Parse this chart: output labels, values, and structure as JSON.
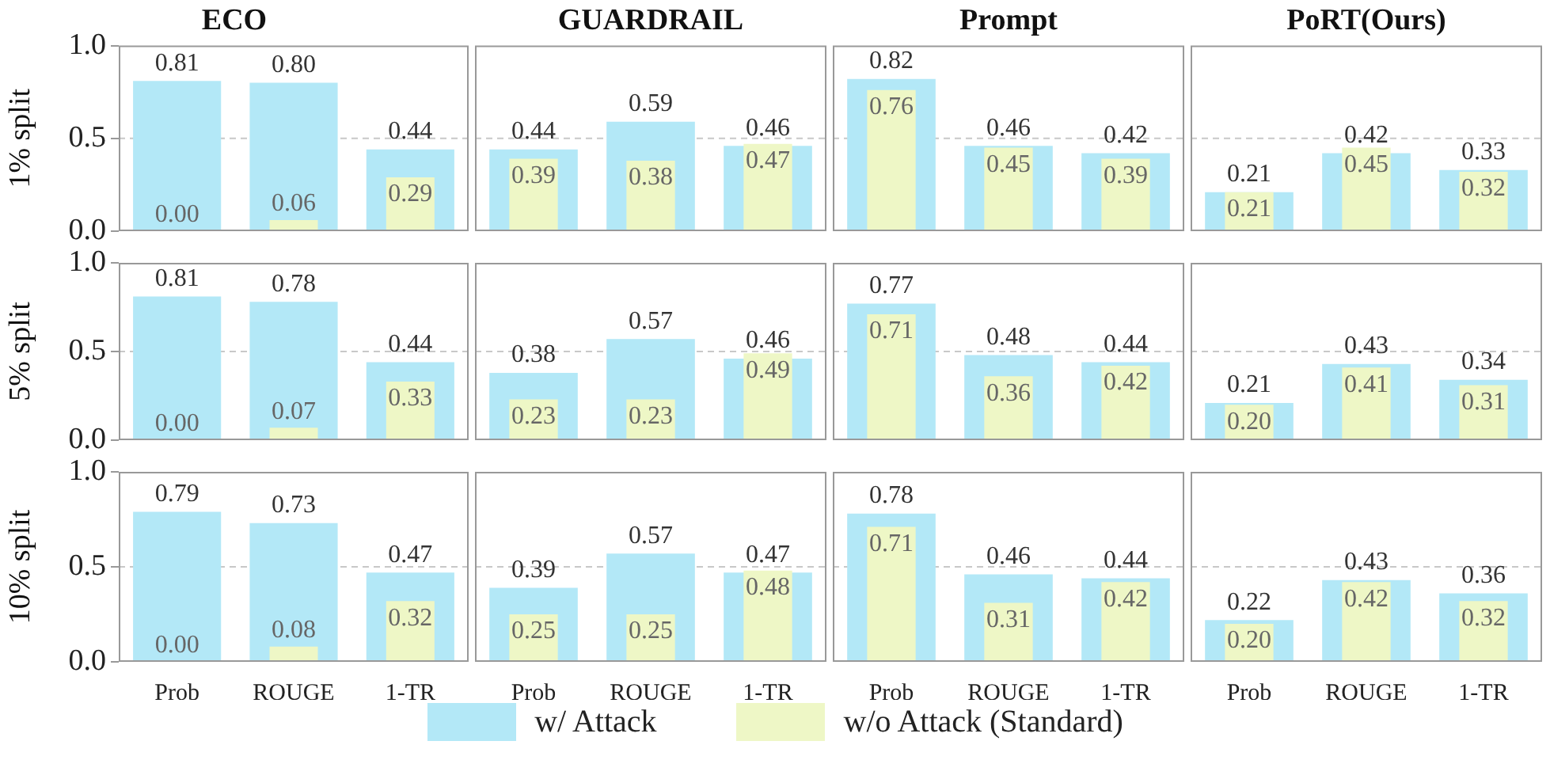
{
  "chart_data": [
    {
      "type": "bar",
      "title": "ECO",
      "ylabel": "1% split",
      "categories": [
        "Prob",
        "ROUGE",
        "1-TR"
      ],
      "legend": "bottom",
      "tick_labels": "y",
      "ylim": [
        0,
        1
      ],
      "yticks": [
        {
          "value": 0,
          "label": "0.0"
        },
        {
          "value": 0.5,
          "label": "0.5"
        },
        {
          "value": 1,
          "label": "1.0"
        }
      ],
      "ref_lines": [
        {
          "axis": "y",
          "value": 0.5,
          "color": "#c8c8c8",
          "line_style": "dashed"
        }
      ],
      "series": [
        {
          "name": "w/ Attack",
          "color": "#b3e8f7",
          "values": [
            0.81,
            0.8,
            0.44
          ],
          "value_labels": [
            "0.81",
            "0.80",
            "0.44"
          ]
        },
        {
          "name": "w/o Attack (Standard)",
          "color": "#eef7c6",
          "values": [
            0.0,
            0.06,
            0.29
          ],
          "value_labels": [
            "0.00",
            "0.06",
            "0.29"
          ]
        }
      ]
    },
    {
      "type": "bar",
      "title": "GUARDRAIL",
      "categories": [
        "Prob",
        "ROUGE",
        "1-TR"
      ],
      "tick_labels": false,
      "ylim": [
        0,
        1
      ],
      "ref_lines": [
        {
          "axis": "y",
          "value": 0.5,
          "color": "#c8c8c8",
          "line_style": "dashed"
        }
      ],
      "series": [
        {
          "name": "w/ Attack",
          "color": "#b3e8f7",
          "values": [
            0.44,
            0.59,
            0.46
          ],
          "value_labels": [
            "0.44",
            "0.59",
            "0.46"
          ]
        },
        {
          "name": "w/o Attack (Standard)",
          "color": "#eef7c6",
          "values": [
            0.39,
            0.38,
            0.47
          ],
          "value_labels": [
            "0.39",
            "0.38",
            "0.47"
          ]
        }
      ]
    },
    {
      "type": "bar",
      "title": "Prompt",
      "categories": [
        "Prob",
        "ROUGE",
        "1-TR"
      ],
      "tick_labels": false,
      "ylim": [
        0,
        1
      ],
      "ref_lines": [
        {
          "axis": "y",
          "value": 0.5,
          "color": "#c8c8c8",
          "line_style": "dashed"
        }
      ],
      "series": [
        {
          "name": "w/ Attack",
          "color": "#b3e8f7",
          "values": [
            0.82,
            0.46,
            0.42
          ],
          "value_labels": [
            "0.82",
            "0.46",
            "0.42"
          ]
        },
        {
          "name": "w/o Attack (Standard)",
          "color": "#eef7c6",
          "values": [
            0.76,
            0.45,
            0.39
          ],
          "value_labels": [
            "0.76",
            "0.45",
            "0.39"
          ]
        }
      ]
    },
    {
      "type": "bar",
      "title": "PoRT(Ours)",
      "categories": [
        "Prob",
        "ROUGE",
        "1-TR"
      ],
      "tick_labels": false,
      "ylim": [
        0,
        1
      ],
      "ref_lines": [
        {
          "axis": "y",
          "value": 0.5,
          "color": "#c8c8c8",
          "line_style": "dashed"
        }
      ],
      "series": [
        {
          "name": "w/ Attack",
          "color": "#b3e8f7",
          "values": [
            0.21,
            0.42,
            0.33
          ],
          "value_labels": [
            "0.21",
            "0.42",
            "0.33"
          ]
        },
        {
          "name": "w/o Attack (Standard)",
          "color": "#eef7c6",
          "values": [
            0.21,
            0.45,
            0.32
          ],
          "value_labels": [
            "0.21",
            "0.45",
            "0.32"
          ]
        }
      ]
    },
    {
      "type": "bar",
      "ylabel": "5% split",
      "categories": [
        "Prob",
        "ROUGE",
        "1-TR"
      ],
      "tick_labels": "y",
      "ylim": [
        0,
        1
      ],
      "yticks": [
        {
          "value": 0,
          "label": "0.0"
        },
        {
          "value": 0.5,
          "label": "0.5"
        },
        {
          "value": 1,
          "label": "1.0"
        }
      ],
      "ref_lines": [
        {
          "axis": "y",
          "value": 0.5,
          "color": "#c8c8c8",
          "line_style": "dashed"
        }
      ],
      "series": [
        {
          "name": "w/ Attack",
          "color": "#b3e8f7",
          "values": [
            0.81,
            0.78,
            0.44
          ],
          "value_labels": [
            "0.81",
            "0.78",
            "0.44"
          ]
        },
        {
          "name": "w/o Attack (Standard)",
          "color": "#eef7c6",
          "values": [
            0.0,
            0.07,
            0.33
          ],
          "value_labels": [
            "0.00",
            "0.07",
            "0.33"
          ]
        }
      ]
    },
    {
      "type": "bar",
      "categories": [
        "Prob",
        "ROUGE",
        "1-TR"
      ],
      "tick_labels": false,
      "ylim": [
        0,
        1
      ],
      "ref_lines": [
        {
          "axis": "y",
          "value": 0.5,
          "color": "#c8c8c8",
          "line_style": "dashed"
        }
      ],
      "series": [
        {
          "name": "w/ Attack",
          "color": "#b3e8f7",
          "values": [
            0.38,
            0.57,
            0.46
          ],
          "value_labels": [
            "0.38",
            "0.57",
            "0.46"
          ]
        },
        {
          "name": "w/o Attack (Standard)",
          "color": "#eef7c6",
          "values": [
            0.23,
            0.23,
            0.49
          ],
          "value_labels": [
            "0.23",
            "0.23",
            "0.49"
          ]
        }
      ]
    },
    {
      "type": "bar",
      "categories": [
        "Prob",
        "ROUGE",
        "1-TR"
      ],
      "tick_labels": false,
      "ylim": [
        0,
        1
      ],
      "ref_lines": [
        {
          "axis": "y",
          "value": 0.5,
          "color": "#c8c8c8",
          "line_style": "dashed"
        }
      ],
      "series": [
        {
          "name": "w/ Attack",
          "color": "#b3e8f7",
          "values": [
            0.77,
            0.48,
            0.44
          ],
          "value_labels": [
            "0.77",
            "0.48",
            "0.44"
          ]
        },
        {
          "name": "w/o Attack (Standard)",
          "color": "#eef7c6",
          "values": [
            0.71,
            0.36,
            0.42
          ],
          "value_labels": [
            "0.71",
            "0.36",
            "0.42"
          ]
        }
      ]
    },
    {
      "type": "bar",
      "categories": [
        "Prob",
        "ROUGE",
        "1-TR"
      ],
      "tick_labels": false,
      "ylim": [
        0,
        1
      ],
      "ref_lines": [
        {
          "axis": "y",
          "value": 0.5,
          "color": "#c8c8c8",
          "line_style": "dashed"
        }
      ],
      "series": [
        {
          "name": "w/ Attack",
          "color": "#b3e8f7",
          "values": [
            0.21,
            0.43,
            0.34
          ],
          "value_labels": [
            "0.21",
            "0.43",
            "0.34"
          ]
        },
        {
          "name": "w/o Attack (Standard)",
          "color": "#eef7c6",
          "values": [
            0.2,
            0.41,
            0.31
          ],
          "value_labels": [
            "0.20",
            "0.41",
            "0.31"
          ]
        }
      ]
    },
    {
      "type": "bar",
      "ylabel": "10% split",
      "categories": [
        "Prob",
        "ROUGE",
        "1-TR"
      ],
      "ylim": [
        0,
        1
      ],
      "yticks": [
        {
          "value": 0,
          "label": "0.0"
        },
        {
          "value": 0.5,
          "label": "0.5"
        },
        {
          "value": 1,
          "label": "1.0"
        }
      ],
      "ref_lines": [
        {
          "axis": "y",
          "value": 0.5,
          "color": "#c8c8c8",
          "line_style": "dashed"
        }
      ],
      "series": [
        {
          "name": "w/ Attack",
          "color": "#b3e8f7",
          "values": [
            0.79,
            0.73,
            0.47
          ],
          "value_labels": [
            "0.79",
            "0.73",
            "0.47"
          ]
        },
        {
          "name": "w/o Attack (Standard)",
          "color": "#eef7c6",
          "values": [
            0.0,
            0.08,
            0.32
          ],
          "value_labels": [
            "0.00",
            "0.08",
            "0.32"
          ]
        }
      ]
    },
    {
      "type": "bar",
      "categories": [
        "Prob",
        "ROUGE",
        "1-TR"
      ],
      "tick_labels": "x",
      "ylim": [
        0,
        1
      ],
      "ref_lines": [
        {
          "axis": "y",
          "value": 0.5,
          "color": "#c8c8c8",
          "line_style": "dashed"
        }
      ],
      "series": [
        {
          "name": "w/ Attack",
          "color": "#b3e8f7",
          "values": [
            0.39,
            0.57,
            0.47
          ],
          "value_labels": [
            "0.39",
            "0.57",
            "0.47"
          ]
        },
        {
          "name": "w/o Attack (Standard)",
          "color": "#eef7c6",
          "values": [
            0.25,
            0.25,
            0.48
          ],
          "value_labels": [
            "0.25",
            "0.25",
            "0.48"
          ]
        }
      ]
    },
    {
      "type": "bar",
      "categories": [
        "Prob",
        "ROUGE",
        "1-TR"
      ],
      "tick_labels": "x",
      "ylim": [
        0,
        1
      ],
      "ref_lines": [
        {
          "axis": "y",
          "value": 0.5,
          "color": "#c8c8c8",
          "line_style": "dashed"
        }
      ],
      "series": [
        {
          "name": "w/ Attack",
          "color": "#b3e8f7",
          "values": [
            0.78,
            0.46,
            0.44
          ],
          "value_labels": [
            "0.78",
            "0.46",
            "0.44"
          ]
        },
        {
          "name": "w/o Attack (Standard)",
          "color": "#eef7c6",
          "values": [
            0.71,
            0.31,
            0.42
          ],
          "value_labels": [
            "0.71",
            "0.31",
            "0.42"
          ]
        }
      ]
    },
    {
      "type": "bar",
      "categories": [
        "Prob",
        "ROUGE",
        "1-TR"
      ],
      "tick_labels": "x",
      "ylim": [
        0,
        1
      ],
      "ref_lines": [
        {
          "axis": "y",
          "value": 0.5,
          "color": "#c8c8c8",
          "line_style": "dashed"
        }
      ],
      "series": [
        {
          "name": "w/ Attack",
          "color": "#b3e8f7",
          "values": [
            0.22,
            0.43,
            0.36
          ],
          "value_labels": [
            "0.22",
            "0.43",
            "0.36"
          ]
        },
        {
          "name": "w/o Attack (Standard)",
          "color": "#eef7c6",
          "values": [
            0.2,
            0.42,
            0.32
          ],
          "value_labels": [
            "0.20",
            "0.42",
            "0.32"
          ]
        }
      ]
    }
  ]
}
